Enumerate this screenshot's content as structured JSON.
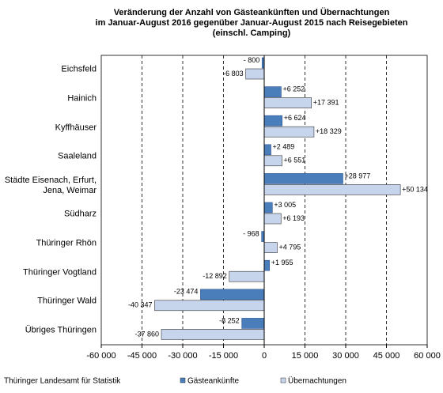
{
  "chart_data": {
    "type": "hbar",
    "title": [
      "Veränderung der Anzahl von Gästeankünften und Übernachtungen",
      "im Januar-August 2016 gegenüber  Januar-August 2015 nach Reisegebieten",
      "(einschl. Camping)"
    ],
    "categories": [
      "Eichsfeld",
      "Hainich",
      "Kyffhäuser",
      "Saaleland",
      "Städte Eisenach, Erfurt, Jena, Weimar",
      "Südharz",
      "Thüringer Rhön",
      "Thüringer Vogtland",
      "Thüringer Wald",
      "Übriges Thüringen"
    ],
    "series": [
      {
        "name": "Gästeankünfte",
        "color": "#4a7ebb",
        "values": [
          -800,
          6252,
          6624,
          2489,
          28977,
          3005,
          -968,
          1955,
          -23474,
          -8252
        ],
        "value_labels": [
          "- 800",
          "+6 252",
          "+6 624",
          "+2 489",
          "+28 977",
          "+3 005",
          "- 968",
          "+1 955",
          "-23 474",
          "-8 252"
        ]
      },
      {
        "name": "Übernachtungen",
        "color": "#c6d5ec",
        "values": [
          -6803,
          17391,
          18329,
          6551,
          50134,
          6193,
          4795,
          -12892,
          -40347,
          -37860
        ],
        "value_labels": [
          "-6 803",
          "+17 391",
          "+18 329",
          "+6 551",
          "+50 134",
          "+6 193",
          "+4 795",
          "-12 892",
          "-40 347",
          "-37 860"
        ]
      }
    ],
    "xlim": [
      -60000,
      60000
    ],
    "xticks": [
      {
        "value": -60000,
        "label": "-60 000"
      },
      {
        "value": -45000,
        "label": "-45 000"
      },
      {
        "value": -30000,
        "label": "-30 000"
      },
      {
        "value": -15000,
        "label": "-15 000"
      },
      0,
      {
        "value": 15000,
        "label": "15 000"
      },
      {
        "value": 30000,
        "label": "30 000"
      },
      {
        "value": 45000,
        "label": "45 000"
      },
      {
        "value": 60000,
        "label": "60 000"
      }
    ],
    "grid": true,
    "source": "Thüringer Landesamt für Statistik"
  }
}
